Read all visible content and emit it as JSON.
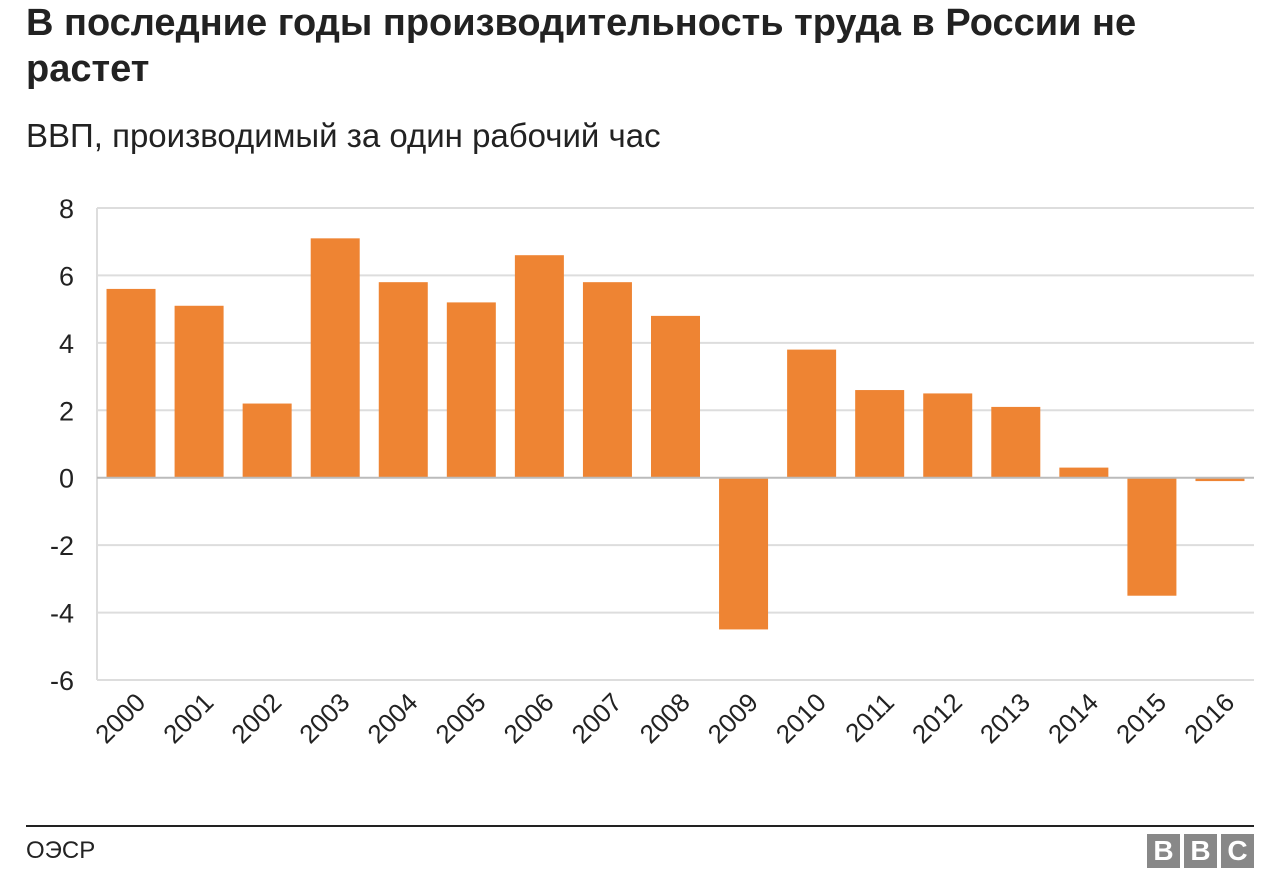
{
  "header": {
    "title": "В последние годы производительность труда в России не растет",
    "subtitle": "ВВП, производимый за один рабочий час"
  },
  "footer": {
    "source": "ОЭСР",
    "logo": [
      "B",
      "B",
      "C"
    ]
  },
  "colors": {
    "bar": "#EE8433",
    "grid": "#DDDDDD",
    "zero_line": "#BBBBBB",
    "text": "#222222",
    "logo": "#888888"
  },
  "chart_data": {
    "type": "bar",
    "categories": [
      "2000",
      "2001",
      "2002",
      "2003",
      "2004",
      "2005",
      "2006",
      "2007",
      "2008",
      "2009",
      "2010",
      "2011",
      "2012",
      "2013",
      "2014",
      "2015",
      "2016"
    ],
    "values": [
      5.6,
      5.1,
      2.2,
      7.1,
      5.8,
      5.2,
      6.6,
      5.8,
      4.8,
      -4.5,
      3.8,
      2.6,
      2.5,
      2.1,
      0.3,
      -3.5,
      -0.1
    ],
    "ylim": [
      -6,
      8
    ],
    "yticks": [
      "8",
      "6",
      "4",
      "2",
      "0",
      "-2",
      "-4",
      "-6"
    ],
    "ytick_values": [
      8,
      6,
      4,
      2,
      0,
      -2,
      -4,
      -6
    ],
    "grid": true,
    "legend": "none"
  }
}
